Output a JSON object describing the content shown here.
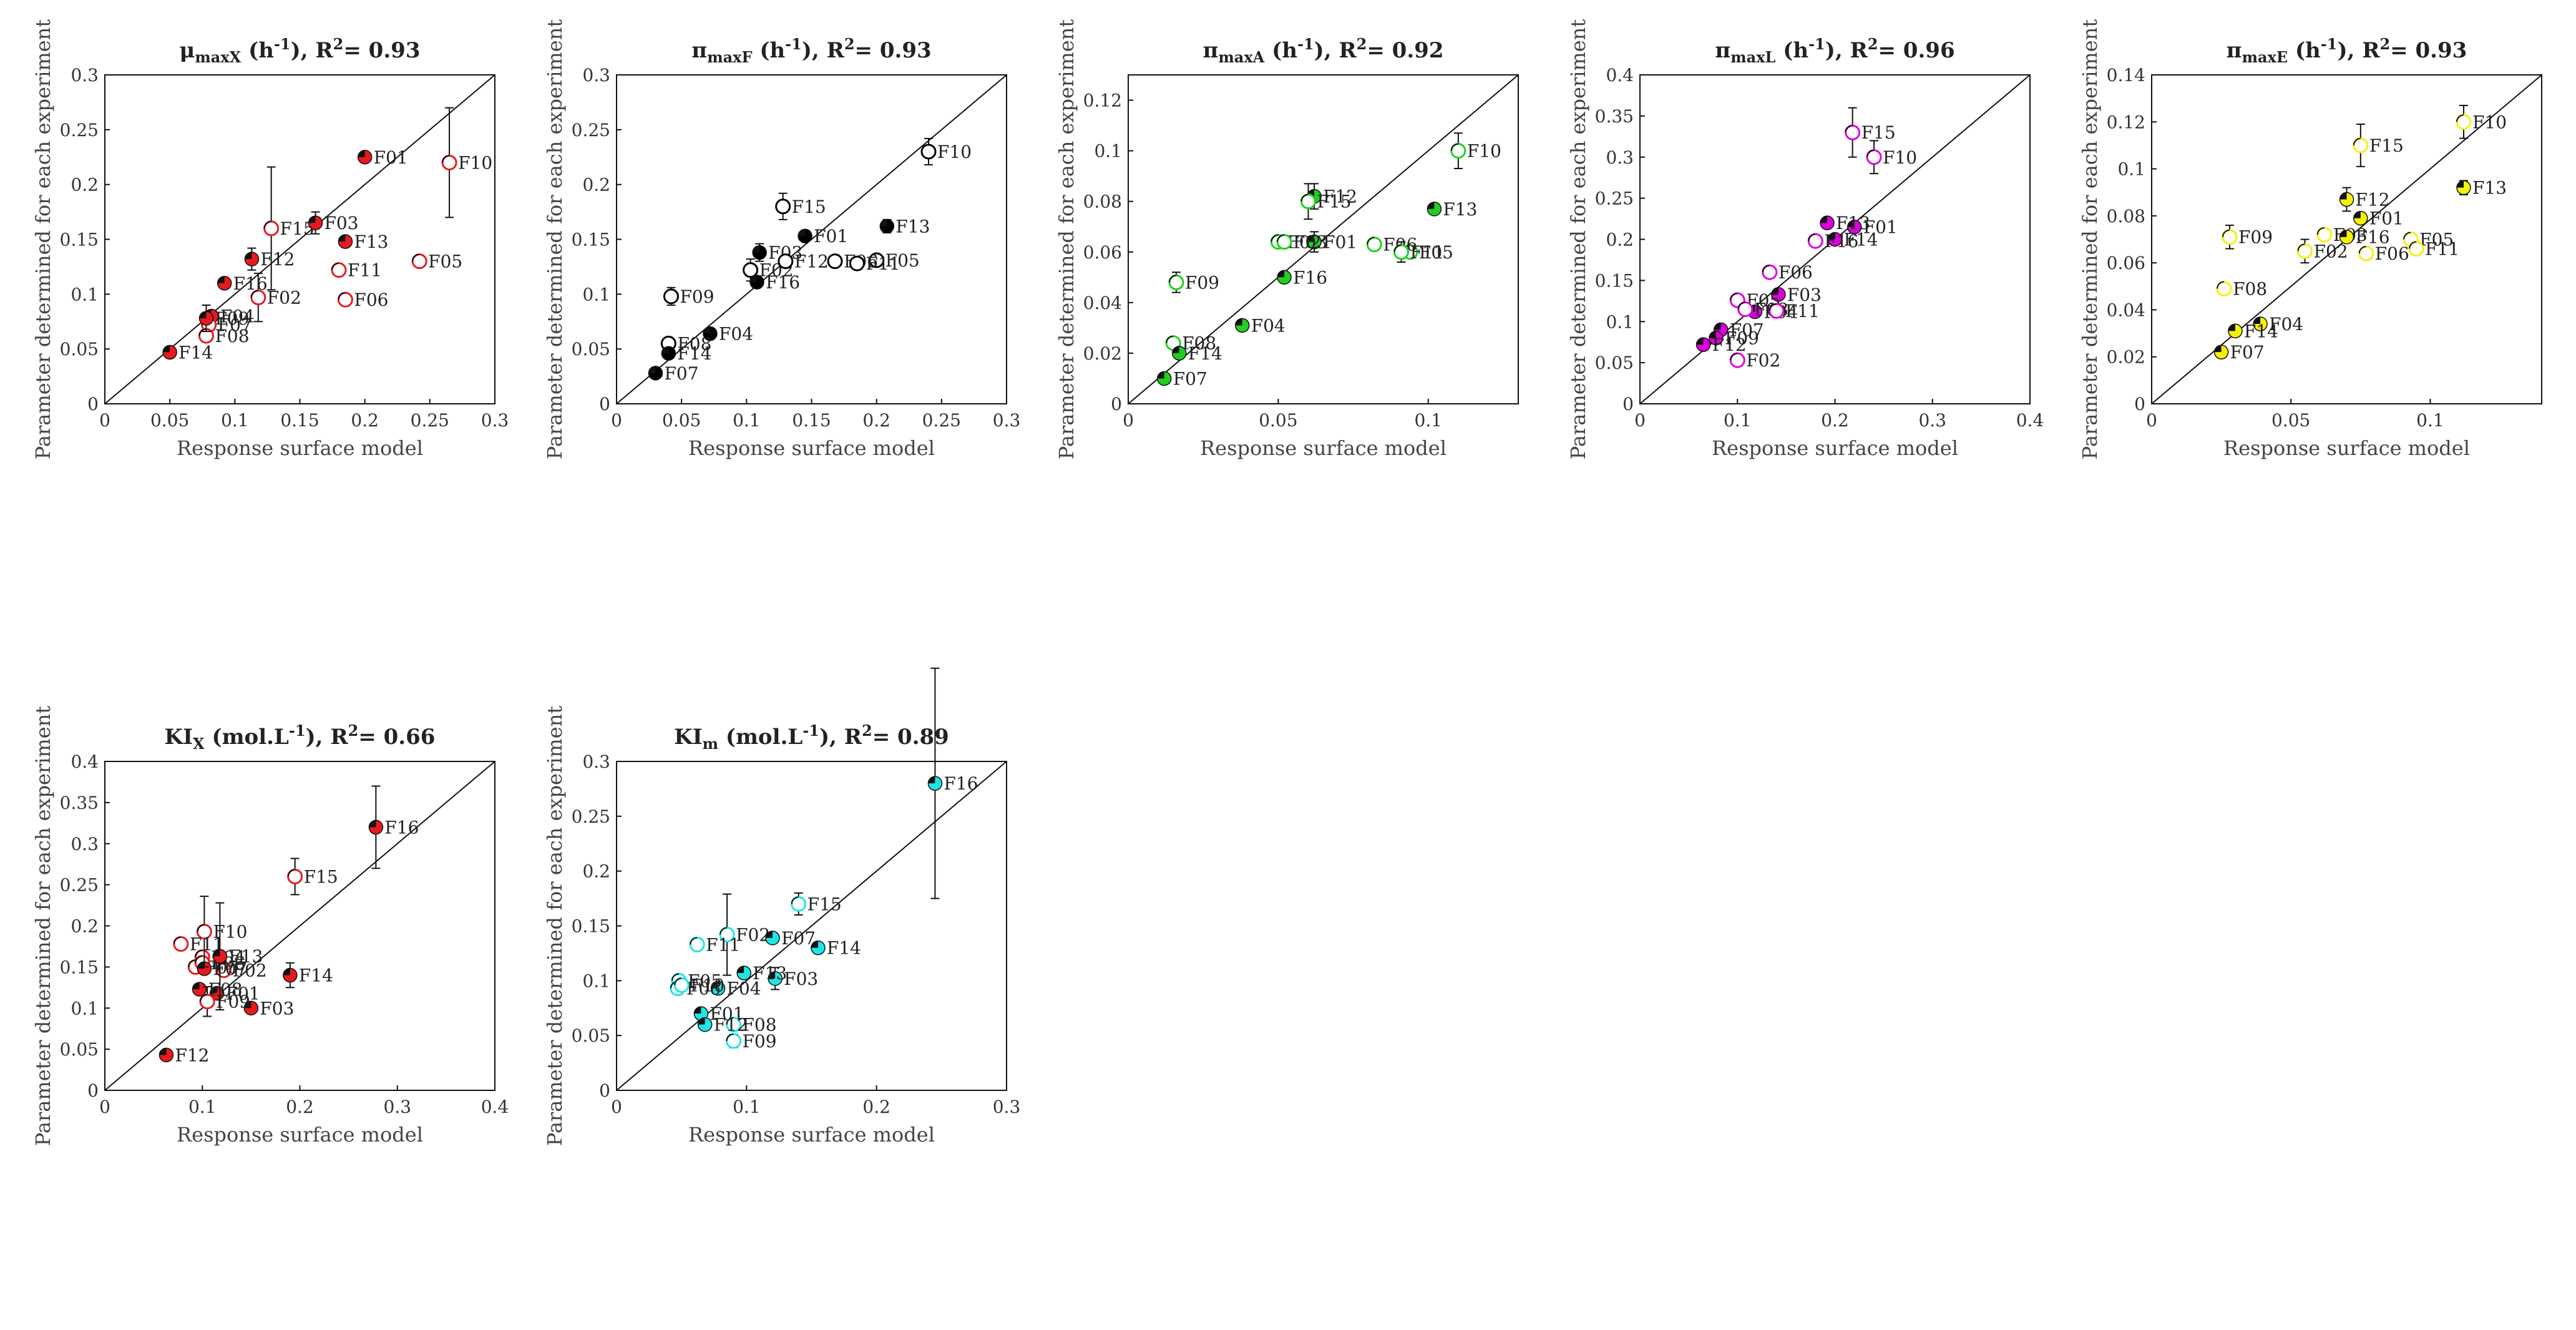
{
  "figure": {
    "xlabel": "Response surface model",
    "ylabel": "Parameter determined for each experiment"
  },
  "chart_data": [
    {
      "type": "scatter",
      "title": "μmaxX (h⁻¹), R²= 0.93",
      "title_main": "μ",
      "title_sub": "maxX",
      "title_unit": " (h",
      "title_unit_sup": "-1",
      "title_r2_prefix": "), R",
      "title_r2_sup": "2",
      "title_r2_value": "= 0.93",
      "color": "#e8191f",
      "xlim": [
        0,
        0.3
      ],
      "ylim": [
        0,
        0.3
      ],
      "xticks": [
        "0",
        "0.05",
        "0.1",
        "0.15",
        "0.2",
        "0.25",
        "0.3"
      ],
      "yticks": [
        "0",
        "0.05",
        "0.1",
        "0.15",
        "0.2",
        "0.25",
        "0.3"
      ],
      "points": [
        {
          "label": "F01",
          "x": 0.2,
          "y": 0.225,
          "filled": true
        },
        {
          "label": "F02",
          "x": 0.118,
          "y": 0.097,
          "filled": false,
          "err": 0.022
        },
        {
          "label": "F03",
          "x": 0.162,
          "y": 0.165,
          "filled": true,
          "err": 0.01
        },
        {
          "label": "F04",
          "x": 0.082,
          "y": 0.08,
          "filled": true
        },
        {
          "label": "F05",
          "x": 0.242,
          "y": 0.13,
          "filled": false
        },
        {
          "label": "F06",
          "x": 0.185,
          "y": 0.095,
          "filled": false
        },
        {
          "label": "F07",
          "x": 0.08,
          "y": 0.072,
          "filled": false
        },
        {
          "label": "F08",
          "x": 0.078,
          "y": 0.062,
          "filled": false
        },
        {
          "label": "F09",
          "x": 0.078,
          "y": 0.078,
          "filled": true,
          "err": 0.012
        },
        {
          "label": "F10",
          "x": 0.265,
          "y": 0.22,
          "filled": false,
          "err": 0.05
        },
        {
          "label": "F11",
          "x": 0.18,
          "y": 0.122,
          "filled": false
        },
        {
          "label": "F12",
          "x": 0.113,
          "y": 0.132,
          "filled": true,
          "err": 0.01
        },
        {
          "label": "F13",
          "x": 0.185,
          "y": 0.148,
          "filled": true
        },
        {
          "label": "F14",
          "x": 0.05,
          "y": 0.047,
          "filled": true
        },
        {
          "label": "F15",
          "x": 0.128,
          "y": 0.16,
          "filled": false,
          "err": 0.056
        },
        {
          "label": "F16",
          "x": 0.092,
          "y": 0.11,
          "filled": true
        }
      ]
    },
    {
      "type": "scatter",
      "title": "πmaxF (h⁻¹), R²= 0.93",
      "title_main": "π",
      "title_sub": "maxF",
      "title_unit": " (h",
      "title_unit_sup": "-1",
      "title_r2_prefix": "), R",
      "title_r2_sup": "2",
      "title_r2_value": "= 0.93",
      "color": "#000000",
      "xlim": [
        0,
        0.3
      ],
      "ylim": [
        0,
        0.3
      ],
      "xticks": [
        "0",
        "0.05",
        "0.1",
        "0.15",
        "0.2",
        "0.25",
        "0.3"
      ],
      "yticks": [
        "0",
        "0.05",
        "0.1",
        "0.15",
        "0.2",
        "0.25",
        "0.3"
      ],
      "points": [
        {
          "label": "F01",
          "x": 0.145,
          "y": 0.153,
          "filled": true
        },
        {
          "label": "F02",
          "x": 0.103,
          "y": 0.122,
          "filled": false,
          "err": 0.01
        },
        {
          "label": "F03",
          "x": 0.11,
          "y": 0.138,
          "filled": true,
          "err": 0.008
        },
        {
          "label": "F04",
          "x": 0.072,
          "y": 0.064,
          "filled": true
        },
        {
          "label": "F05",
          "x": 0.2,
          "y": 0.131,
          "filled": false
        },
        {
          "label": "F06",
          "x": 0.168,
          "y": 0.13,
          "filled": false
        },
        {
          "label": "F07",
          "x": 0.03,
          "y": 0.028,
          "filled": true
        },
        {
          "label": "F08",
          "x": 0.04,
          "y": 0.055,
          "filled": false
        },
        {
          "label": "F09",
          "x": 0.042,
          "y": 0.098,
          "filled": false,
          "err": 0.008
        },
        {
          "label": "F10",
          "x": 0.24,
          "y": 0.23,
          "filled": false,
          "err": 0.012
        },
        {
          "label": "F11",
          "x": 0.185,
          "y": 0.128,
          "filled": false
        },
        {
          "label": "F12",
          "x": 0.13,
          "y": 0.13,
          "filled": false
        },
        {
          "label": "F13",
          "x": 0.208,
          "y": 0.162,
          "filled": true,
          "err": 0.006
        },
        {
          "label": "F14",
          "x": 0.04,
          "y": 0.046,
          "filled": true
        },
        {
          "label": "F15",
          "x": 0.128,
          "y": 0.18,
          "filled": false,
          "err": 0.012
        },
        {
          "label": "F16",
          "x": 0.108,
          "y": 0.111,
          "filled": true
        }
      ]
    },
    {
      "type": "scatter",
      "title": "πmaxA (h⁻¹), R²= 0.92",
      "title_main": "π",
      "title_sub": "maxA",
      "title_unit": " (h",
      "title_unit_sup": "-1",
      "title_r2_prefix": "), R",
      "title_r2_sup": "2",
      "title_r2_value": "= 0.92",
      "color": "#1fd01f",
      "xlim": [
        0,
        0.13
      ],
      "ylim": [
        0,
        0.13
      ],
      "xticks": [
        "0",
        "0.05",
        "0.1"
      ],
      "xtick_values": [
        0,
        0.05,
        0.1
      ],
      "yticks": [
        "0",
        "0.02",
        "0.04",
        "0.06",
        "0.08",
        "0.1",
        "0.12"
      ],
      "ytick_values": [
        0,
        0.02,
        0.04,
        0.06,
        0.08,
        0.1,
        0.12
      ],
      "points": [
        {
          "label": "F01",
          "x": 0.062,
          "y": 0.064,
          "filled": true,
          "err": 0.004
        },
        {
          "label": "F02",
          "x": 0.05,
          "y": 0.064,
          "filled": false
        },
        {
          "label": "F03",
          "x": 0.052,
          "y": 0.064,
          "filled": false
        },
        {
          "label": "F04",
          "x": 0.038,
          "y": 0.031,
          "filled": true
        },
        {
          "label": "F05",
          "x": 0.094,
          "y": 0.06,
          "filled": false
        },
        {
          "label": "F06",
          "x": 0.082,
          "y": 0.063,
          "filled": false
        },
        {
          "label": "F07",
          "x": 0.012,
          "y": 0.01,
          "filled": true
        },
        {
          "label": "F08",
          "x": 0.015,
          "y": 0.024,
          "filled": false
        },
        {
          "label": "F09",
          "x": 0.016,
          "y": 0.048,
          "filled": false,
          "err": 0.004
        },
        {
          "label": "F10",
          "x": 0.11,
          "y": 0.1,
          "filled": false,
          "err": 0.007
        },
        {
          "label": "F11",
          "x": 0.091,
          "y": 0.06,
          "filled": false,
          "err": 0.004
        },
        {
          "label": "F12",
          "x": 0.062,
          "y": 0.082,
          "filled": true,
          "err": 0.005
        },
        {
          "label": "F13",
          "x": 0.102,
          "y": 0.077,
          "filled": true
        },
        {
          "label": "F14",
          "x": 0.017,
          "y": 0.02,
          "filled": true
        },
        {
          "label": "F15",
          "x": 0.06,
          "y": 0.08,
          "filled": false,
          "err": 0.007
        },
        {
          "label": "F16",
          "x": 0.052,
          "y": 0.05,
          "filled": true
        }
      ]
    },
    {
      "type": "scatter",
      "title": "πmaxL (h⁻¹), R²= 0.96",
      "title_main": "π",
      "title_sub": "maxL",
      "title_unit": " (h",
      "title_unit_sup": "-1",
      "title_r2_prefix": "), R",
      "title_r2_sup": "2",
      "title_r2_value": "= 0.96",
      "color": "#dd00dd",
      "xlim": [
        0,
        0.4
      ],
      "ylim": [
        0,
        0.4
      ],
      "xticks": [
        "0",
        "0.1",
        "0.2",
        "0.3",
        "0.4"
      ],
      "yticks": [
        "0",
        "0.05",
        "0.1",
        "0.15",
        "0.2",
        "0.25",
        "0.3",
        "0.35",
        "0.4"
      ],
      "points": [
        {
          "label": "F01",
          "x": 0.22,
          "y": 0.215,
          "filled": true
        },
        {
          "label": "F02",
          "x": 0.1,
          "y": 0.053,
          "filled": false,
          "err": 0.005
        },
        {
          "label": "F03",
          "x": 0.142,
          "y": 0.133,
          "filled": true
        },
        {
          "label": "F04",
          "x": 0.118,
          "y": 0.112,
          "filled": true
        },
        {
          "label": "F05",
          "x": 0.1,
          "y": 0.126,
          "filled": false
        },
        {
          "label": "F06",
          "x": 0.133,
          "y": 0.16,
          "filled": false
        },
        {
          "label": "F07",
          "x": 0.083,
          "y": 0.09,
          "filled": true
        },
        {
          "label": "F08",
          "x": 0.108,
          "y": 0.115,
          "filled": false
        },
        {
          "label": "F09",
          "x": 0.078,
          "y": 0.08,
          "filled": true
        },
        {
          "label": "F10",
          "x": 0.24,
          "y": 0.3,
          "filled": false,
          "err": 0.02
        },
        {
          "label": "F11",
          "x": 0.14,
          "y": 0.113,
          "filled": false,
          "err": 0.008
        },
        {
          "label": "F12",
          "x": 0.065,
          "y": 0.072,
          "filled": true
        },
        {
          "label": "F13",
          "x": 0.192,
          "y": 0.22,
          "filled": true
        },
        {
          "label": "F14",
          "x": 0.2,
          "y": 0.2,
          "filled": true
        },
        {
          "label": "F15",
          "x": 0.218,
          "y": 0.33,
          "filled": false,
          "err": 0.03
        },
        {
          "label": "F16",
          "x": 0.18,
          "y": 0.198,
          "filled": false
        }
      ]
    },
    {
      "type": "scatter",
      "title": "πmaxE (h⁻¹), R²= 0.93",
      "title_main": "π",
      "title_sub": "maxE",
      "title_unit": " (h",
      "title_unit_sup": "-1",
      "title_r2_prefix": "), R",
      "title_r2_sup": "2",
      "title_r2_value": "= 0.93",
      "color": "#f5f00a",
      "xlim": [
        0,
        0.14
      ],
      "ylim": [
        0,
        0.14
      ],
      "xticks": [
        "0",
        "0.05",
        "0.1"
      ],
      "xtick_values": [
        0,
        0.05,
        0.1
      ],
      "yticks": [
        "0",
        "0.02",
        "0.04",
        "0.06",
        "0.08",
        "0.1",
        "0.12",
        "0.14"
      ],
      "ytick_values": [
        0,
        0.02,
        0.04,
        0.06,
        0.08,
        0.1,
        0.12,
        0.14
      ],
      "points": [
        {
          "label": "F01",
          "x": 0.075,
          "y": 0.079,
          "filled": true
        },
        {
          "label": "F02",
          "x": 0.055,
          "y": 0.065,
          "filled": false,
          "err": 0.005
        },
        {
          "label": "F03",
          "x": 0.062,
          "y": 0.072,
          "filled": false
        },
        {
          "label": "F04",
          "x": 0.039,
          "y": 0.034,
          "filled": true
        },
        {
          "label": "F05",
          "x": 0.093,
          "y": 0.07,
          "filled": false
        },
        {
          "label": "F06",
          "x": 0.077,
          "y": 0.064,
          "filled": false
        },
        {
          "label": "F07",
          "x": 0.025,
          "y": 0.022,
          "filled": true
        },
        {
          "label": "F08",
          "x": 0.026,
          "y": 0.049,
          "filled": false
        },
        {
          "label": "F09",
          "x": 0.028,
          "y": 0.071,
          "filled": false,
          "err": 0.005
        },
        {
          "label": "F10",
          "x": 0.112,
          "y": 0.12,
          "filled": false,
          "err": 0.007
        },
        {
          "label": "F11",
          "x": 0.095,
          "y": 0.066,
          "filled": false
        },
        {
          "label": "F12",
          "x": 0.07,
          "y": 0.087,
          "filled": true,
          "err": 0.005
        },
        {
          "label": "F13",
          "x": 0.112,
          "y": 0.092,
          "filled": true,
          "err": 0.003
        },
        {
          "label": "F14",
          "x": 0.03,
          "y": 0.031,
          "filled": true
        },
        {
          "label": "F15",
          "x": 0.075,
          "y": 0.11,
          "filled": false,
          "err": 0.009
        },
        {
          "label": "F16",
          "x": 0.07,
          "y": 0.071,
          "filled": true
        }
      ]
    },
    {
      "type": "scatter",
      "title": "KIX (mol.L⁻¹), R²= 0.66",
      "title_main": "KI",
      "title_sub": "X",
      "title_unit": " (mol.L",
      "title_unit_sup": "-1",
      "title_r2_prefix": "), R",
      "title_r2_sup": "2",
      "title_r2_value": "= 0.66",
      "color": "#e8191f",
      "xlim": [
        0,
        0.4
      ],
      "ylim": [
        0,
        0.4
      ],
      "xticks": [
        "0",
        "0.1",
        "0.2",
        "0.3",
        "0.4"
      ],
      "yticks": [
        "0",
        "0.05",
        "0.1",
        "0.15",
        "0.2",
        "0.25",
        "0.3",
        "0.35",
        "0.4"
      ],
      "points": [
        {
          "label": "F01",
          "x": 0.115,
          "y": 0.118,
          "filled": true
        },
        {
          "label": "F02",
          "x": 0.122,
          "y": 0.146,
          "filled": false
        },
        {
          "label": "F03",
          "x": 0.15,
          "y": 0.1,
          "filled": true
        },
        {
          "label": "F04",
          "x": 0.1,
          "y": 0.162,
          "filled": false
        },
        {
          "label": "F05",
          "x": 0.093,
          "y": 0.15,
          "filled": false
        },
        {
          "label": "F06",
          "x": 0.1,
          "y": 0.155,
          "filled": false
        },
        {
          "label": "F07",
          "x": 0.102,
          "y": 0.148,
          "filled": true
        },
        {
          "label": "F08",
          "x": 0.097,
          "y": 0.123,
          "filled": true
        },
        {
          "label": "F09",
          "x": 0.105,
          "y": 0.108,
          "filled": false,
          "err": 0.018
        },
        {
          "label": "F10",
          "x": 0.102,
          "y": 0.193,
          "filled": false,
          "err": 0.043
        },
        {
          "label": "F11",
          "x": 0.078,
          "y": 0.178,
          "filled": false
        },
        {
          "label": "F12",
          "x": 0.063,
          "y": 0.043,
          "filled": true
        },
        {
          "label": "F13",
          "x": 0.118,
          "y": 0.163,
          "filled": true,
          "err": 0.065
        },
        {
          "label": "F14",
          "x": 0.19,
          "y": 0.14,
          "filled": true,
          "err": 0.015
        },
        {
          "label": "F15",
          "x": 0.195,
          "y": 0.26,
          "filled": false,
          "err": 0.022
        },
        {
          "label": "F16",
          "x": 0.278,
          "y": 0.32,
          "filled": true,
          "err": 0.05
        }
      ]
    },
    {
      "type": "scatter",
      "title": "KIm (mol.L⁻¹), R²= 0.89",
      "title_main": "KI",
      "title_sub": "m",
      "title_unit": " (mol.L",
      "title_unit_sup": "-1",
      "title_r2_prefix": "), R",
      "title_r2_sup": "2",
      "title_r2_value": "= 0.89",
      "color": "#1ee6e6",
      "xlim": [
        0,
        0.3
      ],
      "ylim": [
        0,
        0.3
      ],
      "xticks": [
        "0",
        "0.1",
        "0.2",
        "0.3"
      ],
      "xtick_values": [
        0,
        0.1,
        0.2,
        0.3
      ],
      "yticks": [
        "0",
        "0.05",
        "0.1",
        "0.15",
        "0.2",
        "0.25",
        "0.3"
      ],
      "points": [
        {
          "label": "F01",
          "x": 0.065,
          "y": 0.07,
          "filled": true
        },
        {
          "label": "F02",
          "x": 0.085,
          "y": 0.142,
          "filled": false,
          "err": 0.037
        },
        {
          "label": "F03",
          "x": 0.122,
          "y": 0.102,
          "filled": true,
          "err": 0.01
        },
        {
          "label": "F04",
          "x": 0.078,
          "y": 0.093,
          "filled": true
        },
        {
          "label": "F05",
          "x": 0.048,
          "y": 0.1,
          "filled": false
        },
        {
          "label": "F06",
          "x": 0.047,
          "y": 0.093,
          "filled": false
        },
        {
          "label": "F07",
          "x": 0.12,
          "y": 0.139,
          "filled": true
        },
        {
          "label": "F08",
          "x": 0.09,
          "y": 0.06,
          "filled": false
        },
        {
          "label": "F09",
          "x": 0.09,
          "y": 0.045,
          "filled": false,
          "err": 0.006
        },
        {
          "label": "F10",
          "x": 0.05,
          "y": 0.096,
          "filled": false
        },
        {
          "label": "F11",
          "x": 0.062,
          "y": 0.133,
          "filled": false
        },
        {
          "label": "F12",
          "x": 0.068,
          "y": 0.06,
          "filled": true
        },
        {
          "label": "F13",
          "x": 0.098,
          "y": 0.107,
          "filled": true
        },
        {
          "label": "F14",
          "x": 0.155,
          "y": 0.13,
          "filled": true
        },
        {
          "label": "F15",
          "x": 0.14,
          "y": 0.17,
          "filled": false,
          "err": 0.01
        },
        {
          "label": "F16",
          "x": 0.245,
          "y": 0.28,
          "filled": true,
          "err": 0.105
        }
      ]
    }
  ]
}
